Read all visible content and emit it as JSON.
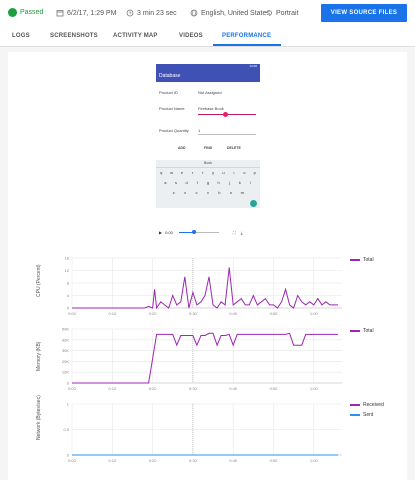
{
  "header": {
    "status": "Passed",
    "datetime": "6/2/17, 1:29 PM",
    "duration": "3 min 23 sec",
    "locale": "English, United States",
    "orientation": "Portrait",
    "view_source_button": "VIEW SOURCE FILES"
  },
  "tabs": [
    {
      "label": "LOGS"
    },
    {
      "label": "SCREENSHOTS"
    },
    {
      "label": "ACTIVITY MAP"
    },
    {
      "label": "VIDEOS"
    },
    {
      "label": "PERFORMANCE",
      "active": true
    }
  ],
  "phone": {
    "appbar_title": "Database",
    "product_id_label": "Product ID",
    "product_id_value": "Not Assigned",
    "product_name_label": "Product Name",
    "product_name_value": "Firebase Book",
    "product_qty_label": "Product Quantity",
    "product_qty_value": "1",
    "buttons": [
      "ADD",
      "FIND",
      "DELETE"
    ],
    "suggestion": "Book",
    "keyboard_rows": [
      "qwertyuiop",
      "asdfghjkl",
      "zxcvbnm"
    ],
    "player_time": "0:00"
  },
  "colors": {
    "accent": "#1a73e8",
    "passed": "#1e9e3e",
    "series": "#9c27b0",
    "sent": "#2196f3"
  },
  "chart_data": [
    {
      "type": "line",
      "ylabel": "CPU (Percent)",
      "y_ticks": [
        "0",
        "4",
        "8",
        "12",
        "16"
      ],
      "x_ticks": [
        "0:00",
        "0:10",
        "0:20",
        "0:30",
        "0:40",
        "0:50",
        "1:00"
      ],
      "ylim": [
        0,
        16
      ],
      "series": [
        {
          "name": "Total",
          "x": [
            0,
            18,
            19,
            20,
            20.5,
            21,
            22,
            23,
            24,
            25,
            26,
            27,
            28,
            29,
            30,
            31,
            32,
            33,
            34,
            35,
            36,
            37,
            38,
            39,
            40,
            41,
            42,
            43,
            44,
            45,
            46,
            47,
            48,
            49,
            50,
            51,
            52,
            53,
            54,
            55,
            56,
            57,
            58,
            59,
            60,
            61,
            62,
            63,
            64,
            65,
            66
          ],
          "values": [
            0,
            0,
            0.5,
            0,
            6,
            0,
            2,
            1,
            0,
            4,
            1,
            2,
            10,
            0,
            5,
            1,
            2,
            4,
            10,
            1,
            0,
            2,
            1,
            13,
            1,
            2,
            3,
            1,
            1,
            4,
            1,
            2,
            3,
            1,
            1,
            0,
            2,
            6,
            1,
            0,
            4,
            2,
            1,
            2,
            1,
            3,
            1,
            2,
            1,
            1,
            1
          ]
        }
      ],
      "legend": "right"
    },
    {
      "type": "line",
      "ylabel": "Memory (KB)",
      "y_ticks": [
        "0",
        "10K",
        "20K",
        "30K",
        "40K",
        "50K"
      ],
      "x_ticks": [
        "0:00",
        "0:10",
        "0:20",
        "0:30",
        "0:40",
        "0:50",
        "1:00"
      ],
      "ylim": [
        0,
        50000
      ],
      "series": [
        {
          "name": "Total",
          "x": [
            0,
            17,
            18,
            19,
            21,
            23,
            25,
            26,
            27,
            29,
            30,
            31,
            32,
            33,
            34,
            35,
            36,
            37,
            38,
            39,
            40,
            41,
            42,
            43,
            44,
            45,
            46,
            50,
            51,
            52,
            53,
            54,
            55,
            56,
            57,
            58,
            59,
            60,
            61,
            62,
            63,
            64,
            65,
            66
          ],
          "values": [
            0,
            0,
            0,
            0,
            45000,
            45000,
            45000,
            35000,
            44000,
            44000,
            44000,
            35000,
            44000,
            44000,
            46000,
            46000,
            35000,
            44000,
            44000,
            45000,
            35000,
            45000,
            45000,
            45000,
            45000,
            45000,
            45000,
            45000,
            45000,
            45000,
            45000,
            46000,
            35000,
            35000,
            35000,
            45000,
            45000,
            45000,
            45000,
            45000,
            45000,
            45000,
            45000,
            45000
          ]
        }
      ],
      "legend": "right"
    },
    {
      "type": "line",
      "ylabel": "Network (Bytes/sec)",
      "y_ticks": [
        "0",
        "0.5",
        "1"
      ],
      "x_ticks": [
        "0:00",
        "0:10",
        "0:20",
        "0:30",
        "0:40",
        "0:50",
        "1:00"
      ],
      "ylim": [
        0,
        1
      ],
      "series": [
        {
          "name": "Received",
          "x": [
            0,
            66
          ],
          "values": [
            0,
            0
          ]
        },
        {
          "name": "Sent",
          "x": [
            0,
            66
          ],
          "values": [
            0,
            0
          ]
        }
      ],
      "legend": "right"
    }
  ]
}
